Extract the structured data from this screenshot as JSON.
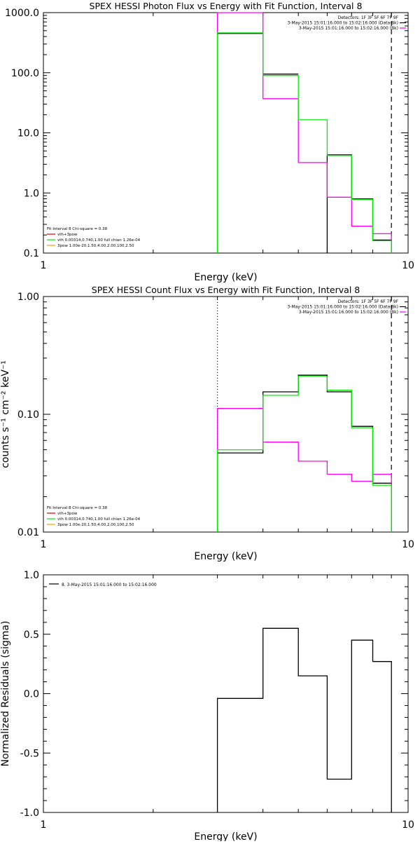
{
  "colors": {
    "black": "#000000",
    "magenta": "#ff00ff",
    "green": "#00ee00",
    "orange": "#ff9900",
    "red": "#dd0000"
  },
  "chart_data": [
    {
      "type": "line",
      "title": "SPEX HESSI Photon Flux vs Energy with Fit Function, Interval 8",
      "xlabel": "Energy (keV)",
      "ylabel": "",
      "xscale": "log",
      "yscale": "log",
      "xlim": [
        1,
        10
      ],
      "ylim": [
        0.1,
        1000
      ],
      "xticks": [
        {
          "v": 1,
          "label": "1"
        },
        {
          "v": 10,
          "label": "10"
        }
      ],
      "yticks": [
        {
          "v": 0.1,
          "label": "0.1"
        },
        {
          "v": 1,
          "label": "1.0"
        },
        {
          "v": 10,
          "label": "10.0"
        },
        {
          "v": 100,
          "label": "100.0"
        },
        {
          "v": 1000,
          "label": "1000.0"
        }
      ],
      "info_lines": [
        {
          "text": "Detectors: 1F 3F 5F 6F 7F 9F",
          "swatch": ""
        },
        {
          "text": "3-May-2015 15:01:16.000 to 15:02:16.000 (Data-Bk)",
          "swatch": "black"
        },
        {
          "text": "3-May-2015 15:01:16.000 to 15:02:16.000 (Bk)",
          "swatch": "magenta"
        }
      ],
      "fit_lines": [
        {
          "text": "Fit Interval 8   Chi-square = 0.38",
          "swatch": ""
        },
        {
          "text": "vth+3pow",
          "swatch": "red"
        },
        {
          "text": "vth 0.00314,0.740,1.00  full chian 1.26e-04",
          "swatch": "green"
        },
        {
          "text": "3pow 1.00e-20,1.50,4.00,2.00,100,2.50",
          "swatch": "orange"
        }
      ],
      "edges": [
        3,
        4,
        5,
        6,
        7,
        8,
        9
      ],
      "series": [
        {
          "name": "Data-Bk",
          "color": "black",
          "values": [
            450,
            95,
            null,
            4.3,
            0.8,
            0.165
          ]
        },
        {
          "name": "Bk",
          "color": "magenta",
          "values": [
            1100,
            37,
            3.2,
            0.85,
            0.28,
            0.21
          ]
        },
        {
          "name": "vth",
          "color": "green",
          "values": [
            460,
            90,
            16.5,
            4.2,
            0.78,
            0.16
          ]
        }
      ],
      "vlines": [
        {
          "x": 3,
          "style": "solid",
          "color": "green"
        },
        {
          "x": 9,
          "style": "dashed",
          "color": "black"
        }
      ]
    },
    {
      "type": "line",
      "title": "SPEX HESSI Count Flux vs Energy with Fit Function, Interval 8",
      "xlabel": "Energy (keV)",
      "ylabel": "counts s⁻¹ cm⁻² keV⁻¹",
      "xscale": "log",
      "yscale": "log",
      "xlim": [
        1,
        10
      ],
      "ylim": [
        0.01,
        1
      ],
      "xticks": [
        {
          "v": 1,
          "label": "1"
        },
        {
          "v": 10,
          "label": "10"
        }
      ],
      "yticks": [
        {
          "v": 0.01,
          "label": "0.01"
        },
        {
          "v": 0.1,
          "label": "0.10"
        },
        {
          "v": 1,
          "label": "1.00"
        }
      ],
      "info_lines": [
        {
          "text": "Detectors: 1F 3F 5F 6F 7F 9F",
          "swatch": ""
        },
        {
          "text": "3-May-2015 15:01:16.000 to 15:02:16.000 (Data-Bk)",
          "swatch": "black"
        },
        {
          "text": "3-May-2015 15:01:16.000 to 15:02:16.000 (Bk)",
          "swatch": "magenta"
        }
      ],
      "fit_lines": [
        {
          "text": "Fit Interval 8   Chi-square = 0.38",
          "swatch": ""
        },
        {
          "text": "vth+3pow",
          "swatch": "red"
        },
        {
          "text": "vth 0.00314,0.740,1.00  full chian 1.26e-04",
          "swatch": "green"
        },
        {
          "text": "3pow 1.00e-20,1.50,4.00,2.00,100,2.50",
          "swatch": "orange"
        }
      ],
      "edges": [
        3,
        4,
        5,
        6,
        7,
        8,
        9
      ],
      "series": [
        {
          "name": "Data-Bk",
          "color": "black",
          "values": [
            0.047,
            0.155,
            0.215,
            0.155,
            0.079,
            0.026
          ]
        },
        {
          "name": "Bk",
          "color": "magenta",
          "values": [
            0.112,
            0.058,
            0.04,
            0.031,
            0.027,
            0.031
          ]
        },
        {
          "name": "vth",
          "color": "green",
          "values": [
            0.05,
            0.145,
            0.21,
            0.16,
            0.077,
            0.025
          ]
        }
      ],
      "vlines": [
        {
          "x": 3,
          "style": "dotted",
          "color": "black"
        },
        {
          "x": 9,
          "style": "dashed",
          "color": "black"
        }
      ]
    },
    {
      "type": "line",
      "title": "",
      "xlabel": "Energy (keV)",
      "ylabel": "Normalized Residuals (sigma)",
      "xscale": "log",
      "yscale": "linear",
      "xlim": [
        1,
        10
      ],
      "ylim": [
        -1,
        1
      ],
      "xticks": [
        {
          "v": 1,
          "label": "1"
        },
        {
          "v": 10,
          "label": "10"
        }
      ],
      "yticks": [
        {
          "v": -1,
          "label": "-1.0"
        },
        {
          "v": -0.5,
          "label": "-0.5"
        },
        {
          "v": 0,
          "label": "0.0"
        },
        {
          "v": 0.5,
          "label": "0.5"
        },
        {
          "v": 1,
          "label": "1.0"
        }
      ],
      "info_lines": [
        {
          "text": "8. 3-May-2015 15:01:16.000 to 15:02:16.000",
          "swatch": "black"
        }
      ],
      "fit_lines": [],
      "edges": [
        3,
        4,
        5,
        6,
        7,
        8,
        9
      ],
      "series": [
        {
          "name": "residuals",
          "color": "black",
          "values": [
            -0.04,
            0.55,
            0.15,
            -0.72,
            0.45,
            0.27
          ]
        }
      ],
      "vlines": []
    }
  ]
}
